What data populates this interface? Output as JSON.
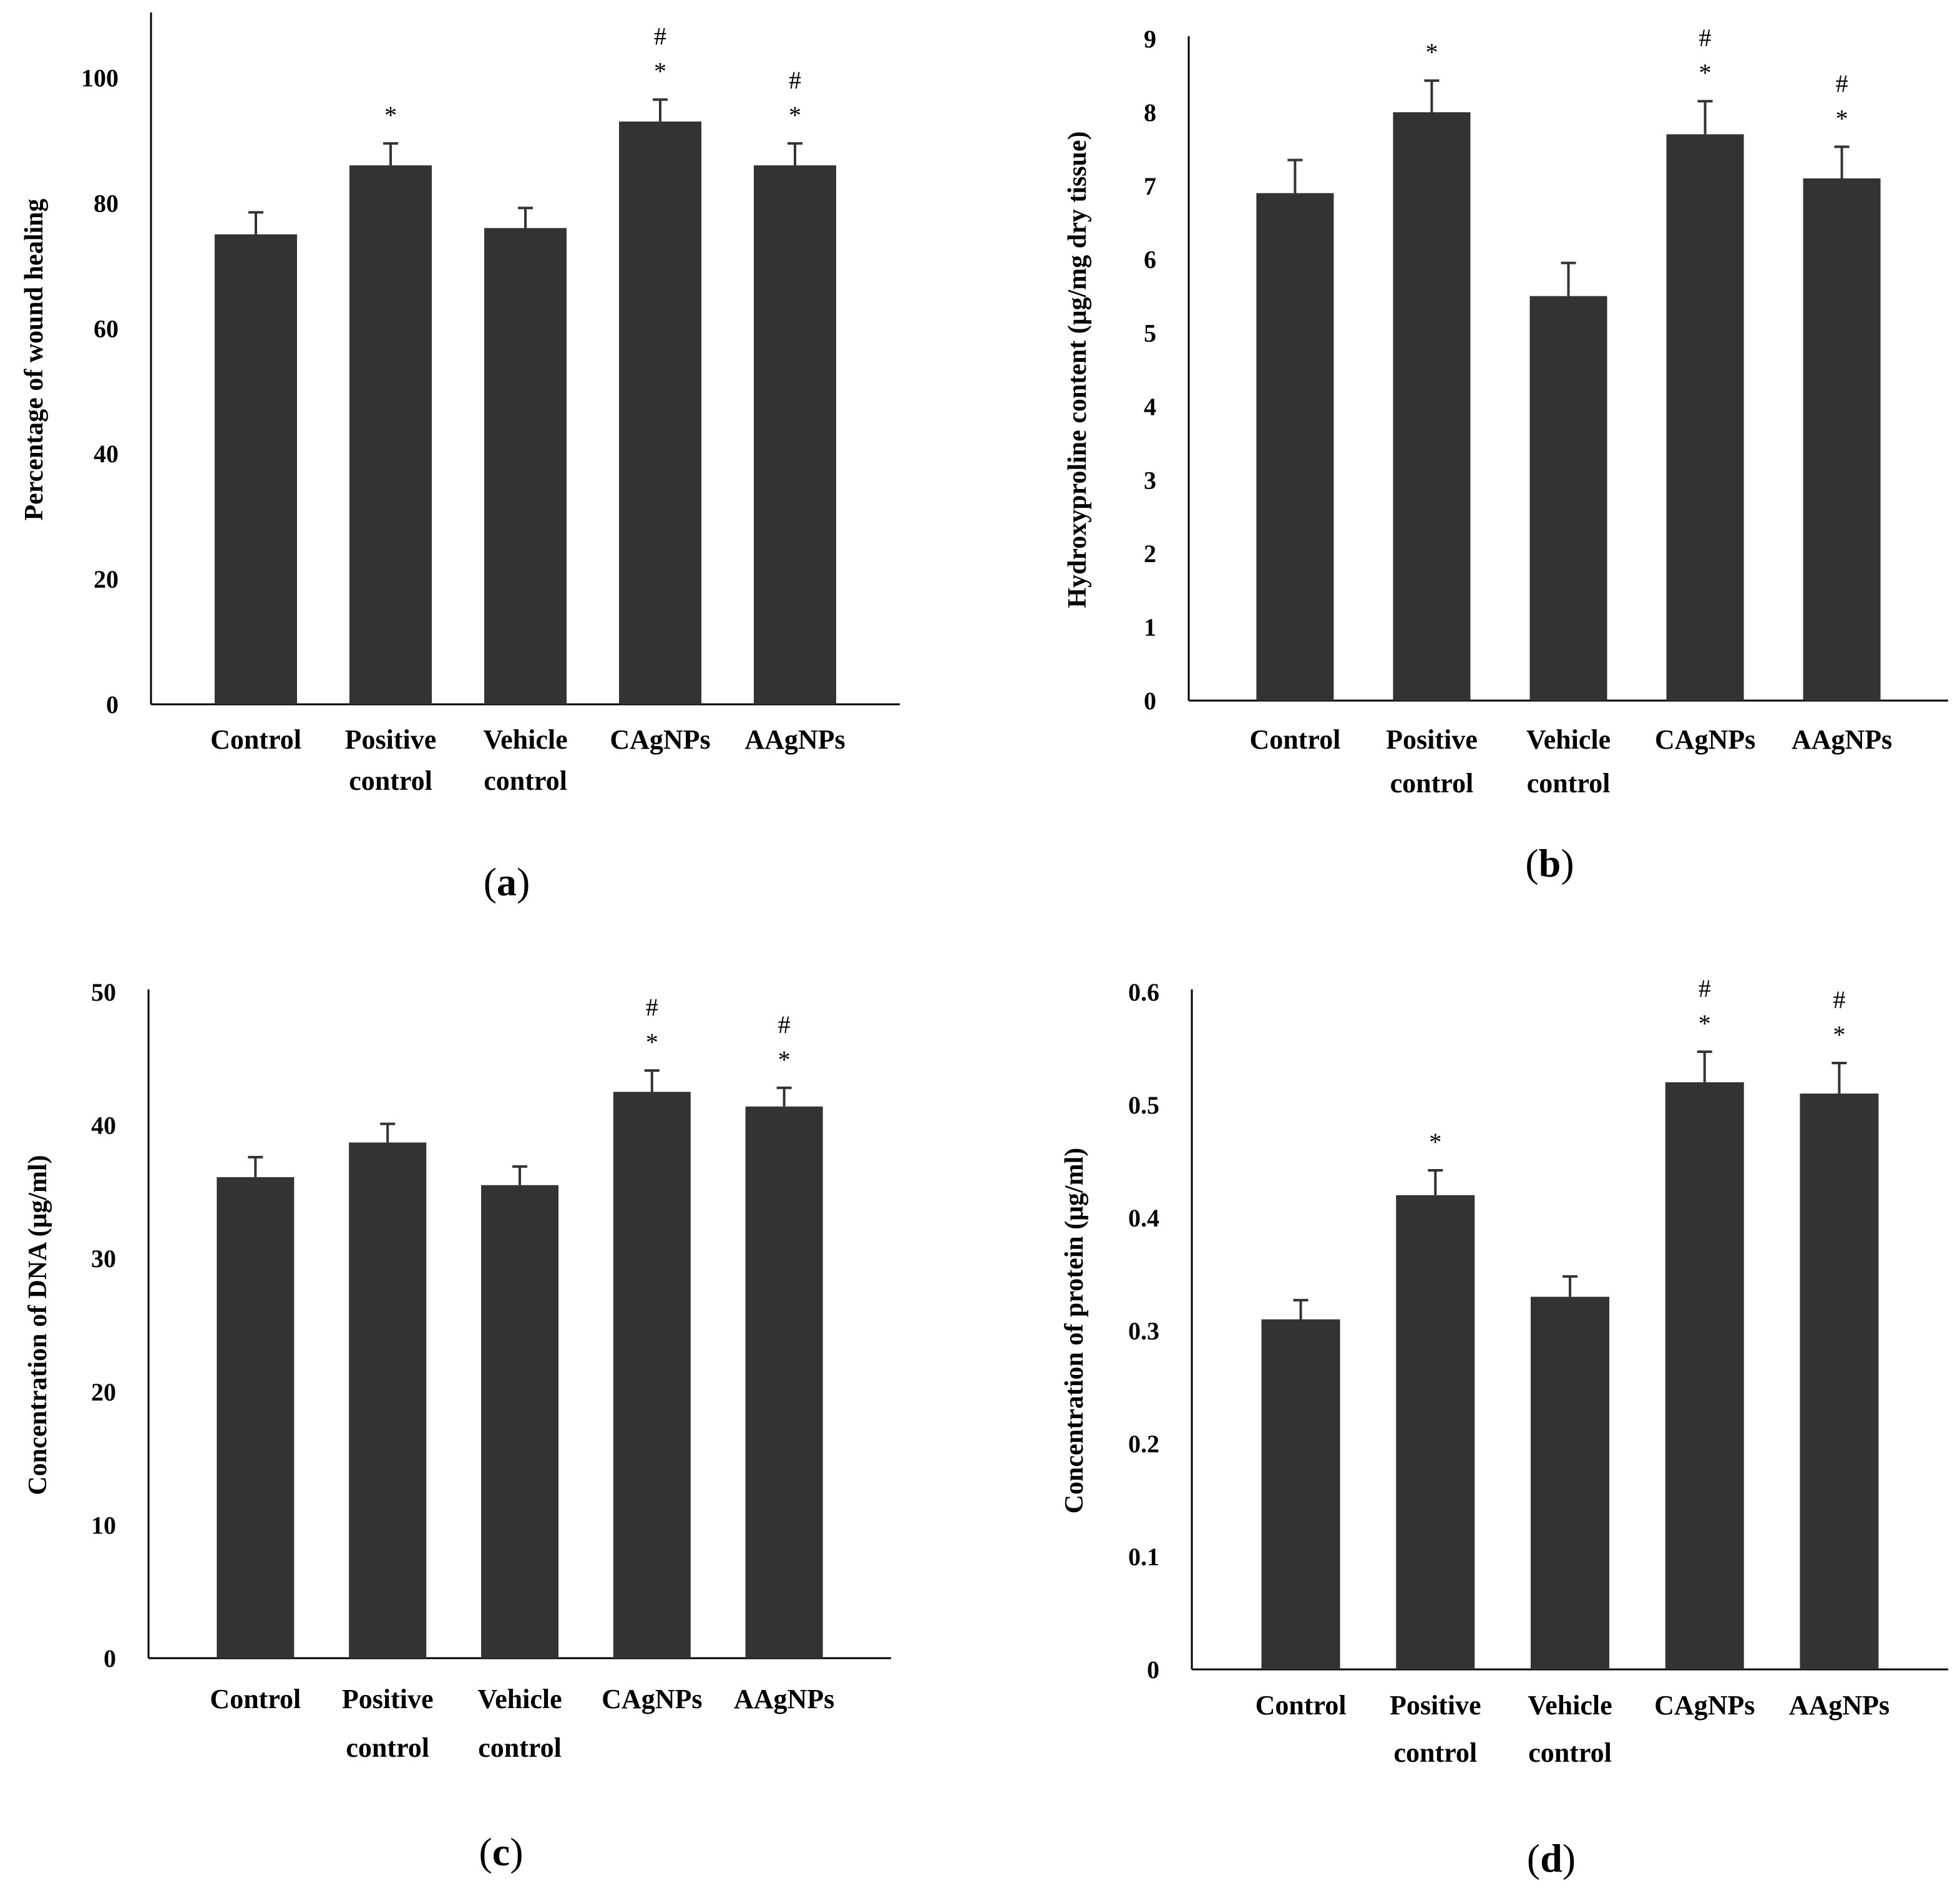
{
  "figure": {
    "bar_color": "#333333",
    "axis_color": "#000000",
    "text_color": "#000000",
    "background": "#ffffff"
  },
  "chart_data": [
    {
      "id": "a",
      "type": "bar",
      "panel_label": "a",
      "title": "",
      "xlabel": "",
      "ylabel": "Percentage of wound healing",
      "categories": [
        [
          "Control"
        ],
        [
          "Positive",
          "control"
        ],
        [
          "Vehicle",
          "control"
        ],
        [
          "CAgNPs"
        ],
        [
          "AAgNPs"
        ]
      ],
      "values": [
        75,
        86,
        76,
        93,
        86
      ],
      "errors": [
        3.5,
        3.5,
        3.2,
        3.5,
        3.5
      ],
      "significance": [
        [],
        [
          "*"
        ],
        [],
        [
          "#",
          "*"
        ],
        [
          "#",
          "*"
        ]
      ],
      "ylim": [
        0,
        110
      ],
      "yticks": [
        0,
        20,
        40,
        60,
        80,
        100
      ],
      "tick_labels": [
        "0",
        "20",
        "40",
        "60",
        "80",
        "100"
      ]
    },
    {
      "id": "b",
      "type": "bar",
      "panel_label": "b",
      "title": "",
      "xlabel": "",
      "ylabel": "Hydroxyproline content (μg/mg dry tissue)",
      "categories": [
        [
          "Control"
        ],
        [
          "Positive",
          "control"
        ],
        [
          "Vehicle",
          "control"
        ],
        [
          "CAgNPs"
        ],
        [
          "AAgNPs"
        ]
      ],
      "values": [
        6.9,
        8.0,
        5.5,
        7.7,
        7.1
      ],
      "errors": [
        0.45,
        0.43,
        0.45,
        0.45,
        0.43
      ],
      "significance": [
        [],
        [
          "*"
        ],
        [],
        [
          "#",
          "*"
        ],
        [
          "#",
          "*"
        ]
      ],
      "ylim": [
        0,
        9
      ],
      "yticks": [
        0,
        1,
        2,
        3,
        4,
        5,
        6,
        7,
        8,
        9
      ],
      "tick_labels": [
        "0",
        "1",
        "2",
        "3",
        "4",
        "5",
        "6",
        "7",
        "8",
        "9"
      ]
    },
    {
      "id": "c",
      "type": "bar",
      "panel_label": "c",
      "title": "",
      "xlabel": "",
      "ylabel": "Concentration of DNA (μg/ml)",
      "categories": [
        [
          "Control"
        ],
        [
          "Positive",
          "control"
        ],
        [
          "Vehicle",
          "control"
        ],
        [
          "CAgNPs"
        ],
        [
          "AAgNPs"
        ]
      ],
      "values": [
        36.1,
        38.7,
        35.5,
        42.5,
        41.4
      ],
      "errors": [
        1.5,
        1.4,
        1.4,
        1.6,
        1.4
      ],
      "significance": [
        [],
        [],
        [],
        [
          "#",
          "*"
        ],
        [
          "#",
          "*"
        ]
      ],
      "ylim": [
        0,
        50
      ],
      "yticks": [
        0,
        10,
        20,
        30,
        40,
        50
      ],
      "tick_labels": [
        "0",
        "10",
        "20",
        "30",
        "40",
        "50"
      ]
    },
    {
      "id": "d",
      "type": "bar",
      "panel_label": "d",
      "title": "",
      "xlabel": "",
      "ylabel": "Concentration of protein (μg/ml)",
      "categories": [
        [
          "Control"
        ],
        [
          "Positive",
          "control"
        ],
        [
          "Vehicle",
          "control"
        ],
        [
          "CAgNPs"
        ],
        [
          "AAgNPs"
        ]
      ],
      "values": [
        0.31,
        0.42,
        0.33,
        0.52,
        0.51
      ],
      "errors": [
        0.017,
        0.022,
        0.018,
        0.027,
        0.027
      ],
      "significance": [
        [],
        [
          "*"
        ],
        [],
        [
          "#",
          "*"
        ],
        [
          "#",
          "*"
        ]
      ],
      "ylim": [
        0,
        0.6
      ],
      "yticks": [
        0,
        0.1,
        0.2,
        0.3,
        0.4,
        0.5,
        0.6
      ],
      "tick_labels": [
        "0",
        "0.1",
        "0.2",
        "0.3",
        "0.4",
        "0.5",
        "0.6"
      ]
    }
  ]
}
